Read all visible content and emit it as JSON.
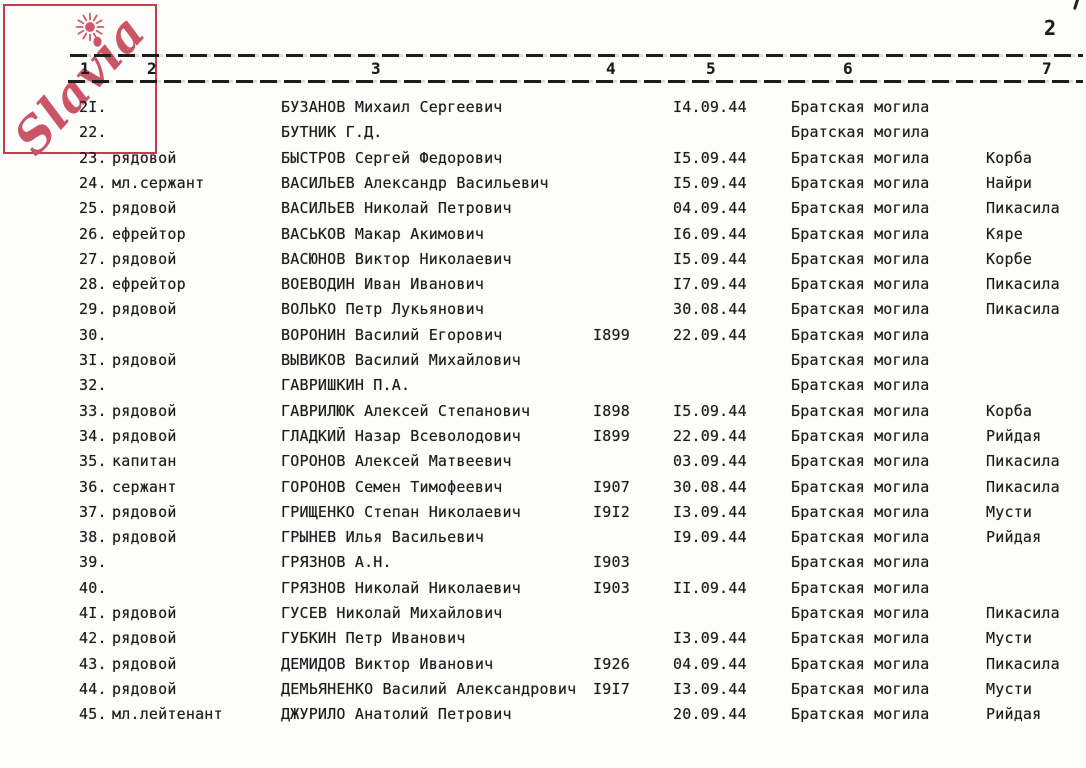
{
  "page": {
    "number": "2"
  },
  "watermark": {
    "text": "Slavia",
    "text_color": "#cb5465",
    "border_color": "#c53c4f"
  },
  "ink_color": "#1c1c1c",
  "table": {
    "column_headers": [
      "1",
      "2",
      "3",
      "4",
      "5",
      "6",
      "7"
    ],
    "rows": [
      {
        "num": "2I.",
        "rank": "",
        "name": "БУЗАНОВ Михаил Сергеевич",
        "year": "",
        "date": "I4.09.44",
        "grave": "Братская могила",
        "place": ""
      },
      {
        "num": "22.",
        "rank": "",
        "name": "БУТНИК Г.Д.",
        "year": "",
        "date": "",
        "grave": "Братская могила",
        "place": ""
      },
      {
        "num": "23.",
        "rank": "рядовой",
        "name": "БЫСТРОВ Сергей Федорович",
        "year": "",
        "date": "I5.09.44",
        "grave": "Братская могила",
        "place": "Корба"
      },
      {
        "num": "24.",
        "rank": "мл.сержант",
        "name": "ВАСИЛЬЕВ Александр Васильевич",
        "year": "",
        "date": "I5.09.44",
        "grave": "Братская могила",
        "place": "Найри"
      },
      {
        "num": "25.",
        "rank": "рядовой",
        "name": "ВАСИЛЬЕВ Николай Петрович",
        "year": "",
        "date": "04.09.44",
        "grave": "Братская могила",
        "place": "Пикасила"
      },
      {
        "num": "26.",
        "rank": "ефрейтор",
        "name": "ВАСЬКОВ Макар Акимович",
        "year": "",
        "date": "I6.09.44",
        "grave": "Братская могила",
        "place": "Кяре"
      },
      {
        "num": "27.",
        "rank": "рядовой",
        "name": "ВАСЮНОВ Виктор Николаевич",
        "year": "",
        "date": "I5.09.44",
        "grave": "Братская могила",
        "place": "Корбе"
      },
      {
        "num": "28.",
        "rank": "ефрейтор",
        "name": "ВОЕВОДИН Иван Иванович",
        "year": "",
        "date": "I7.09.44",
        "grave": "Братская могила",
        "place": "Пикасила"
      },
      {
        "num": "29.",
        "rank": "рядовой",
        "name": "ВОЛЬКО Петр Лукьянович",
        "year": "",
        "date": "30.08.44",
        "grave": "Братская могила",
        "place": "Пикасила"
      },
      {
        "num": "30.",
        "rank": "",
        "name": "ВОРОНИН Василий Егорович",
        "year": "I899",
        "date": "22.09.44",
        "grave": "Братская могила",
        "place": ""
      },
      {
        "num": "3I.",
        "rank": "рядовой",
        "name": "ВЫВИКОВ Василий Михайлович",
        "year": "",
        "date": "",
        "grave": "Братская могила",
        "place": ""
      },
      {
        "num": "32.",
        "rank": "",
        "name": "ГАВРИШКИН П.А.",
        "year": "",
        "date": "",
        "grave": "Братская могила",
        "place": ""
      },
      {
        "num": "33.",
        "rank": "рядовой",
        "name": "ГАВРИЛЮК Алексей Степанович",
        "year": "I898",
        "date": "I5.09.44",
        "grave": "Братская могила",
        "place": "Корба"
      },
      {
        "num": "34.",
        "rank": "рядовой",
        "name": "ГЛАДКИЙ Назар Всеволодович",
        "year": "I899",
        "date": "22.09.44",
        "grave": "Братская могила",
        "place": "Рийдая"
      },
      {
        "num": "35.",
        "rank": "капитан",
        "name": "ГОРОНОВ Алексей Матвеевич",
        "year": "",
        "date": "03.09.44",
        "grave": "Братская могила",
        "place": "Пикасила"
      },
      {
        "num": "36.",
        "rank": "сержант",
        "name": "ГОРОНОВ Семен Тимофеевич",
        "year": "I907",
        "date": "30.08.44",
        "grave": "Братская могила",
        "place": "Пикасила"
      },
      {
        "num": "37.",
        "rank": "рядовой",
        "name": "ГРИЩЕНКО Степан Николаевич",
        "year": "I9I2",
        "date": "I3.09.44",
        "grave": "Братская могила",
        "place": "Мусти"
      },
      {
        "num": "38.",
        "rank": "рядовой",
        "name": "ГРЫНЕВ Илья Васильевич",
        "year": "",
        "date": "I9.09.44",
        "grave": "Братская могила",
        "place": "Рийдая"
      },
      {
        "num": "39.",
        "rank": "",
        "name": "ГРЯЗНОВ А.Н.",
        "year": "I903",
        "date": "",
        "grave": "Братская могила",
        "place": ""
      },
      {
        "num": "40.",
        "rank": "",
        "name": "ГРЯЗНОВ Николай Николаевич",
        "year": "I903",
        "date": "II.09.44",
        "grave": "Братская могила",
        "place": ""
      },
      {
        "num": "4I.",
        "rank": "рядовой",
        "name": "ГУСЕВ Николай Михайлович",
        "year": "",
        "date": "",
        "grave": "Братская могила",
        "place": "Пикасила"
      },
      {
        "num": "42.",
        "rank": "рядовой",
        "name": "ГУБКИН Петр Иванович",
        "year": "",
        "date": "I3.09.44",
        "grave": "Братская могила",
        "place": "Мусти"
      },
      {
        "num": "43.",
        "rank": "рядовой",
        "name": "ДЕМИДОВ Виктор Иванович",
        "year": "I926",
        "date": "04.09.44",
        "grave": "Братская могила",
        "place": "Пикасила"
      },
      {
        "num": "44.",
        "rank": "рядовой",
        "name": "ДЕМЬЯНЕНКО Василий Александрович",
        "year": "I9I7",
        "date": "I3.09.44",
        "grave": "Братская могила",
        "place": "Мусти"
      },
      {
        "num": "45.",
        "rank": "мл.лейтенант",
        "name": "ДЖУРИЛО Анатолий Петрович",
        "year": "",
        "date": "20.09.44",
        "grave": "Братская могила",
        "place": "Рийдая"
      }
    ]
  }
}
